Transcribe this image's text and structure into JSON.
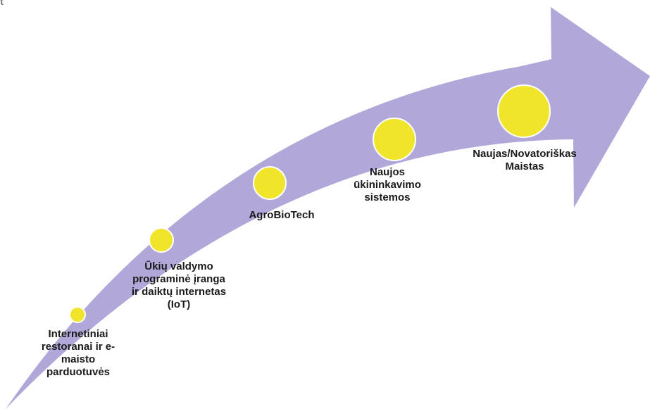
{
  "corner_text": "t",
  "colors": {
    "arrow_fill": "#b1a8d9",
    "circle_fill": "#f0e52b",
    "circle_stroke": "#ffffff"
  },
  "stages": [
    {
      "label": "Internetiniai\nrestoranai ir e-\nmaisto\nparduotuvės"
    },
    {
      "label": "Ūkių valdymo\nprograminė įranga\nir daiktų internetas\n(IoT)"
    },
    {
      "label": "AgroBioTech"
    },
    {
      "label": "Naujos\nūkininkavimo\nsistemos"
    },
    {
      "label": "Naujas/Novatoriškas\nMaistas"
    }
  ]
}
